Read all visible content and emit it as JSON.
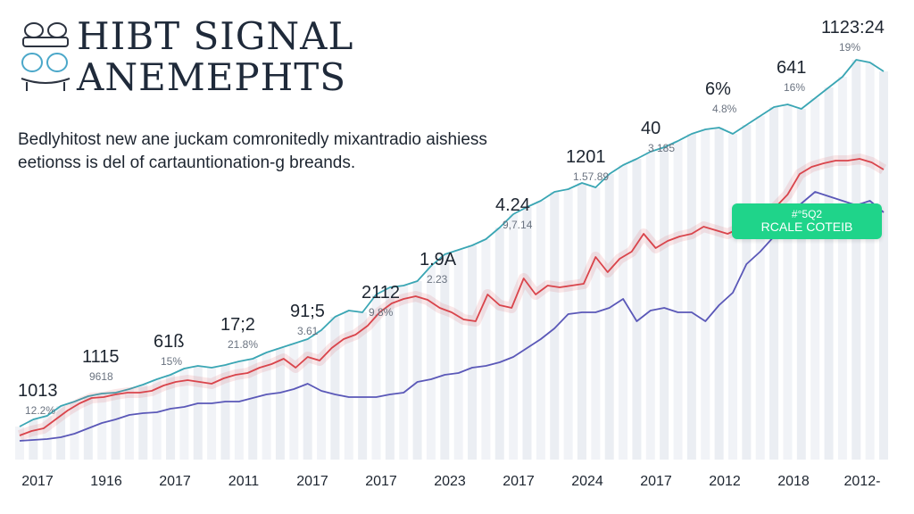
{
  "header": {
    "title_line1": "HIBT SIGNAL",
    "title_line2": "ANEMEPHTS",
    "desc_line1": "Bedlyhitost new ane juckam comronitedly mixantradio aishiess",
    "desc_line2": "eetionss is del of cartauntionation-g breands."
  },
  "badge": {
    "line1": "#°5Q2",
    "line2": "RCALE COTEIB"
  },
  "colors": {
    "teal": "#3aa6b4",
    "red": "#d9444b",
    "blue": "#5a58b8",
    "badge": "#1fd48a",
    "bars": "#e6eaf0"
  },
  "chart_data": {
    "type": "line",
    "title": "HIBT SIGNAL ANEMEPHTS",
    "x_tick_labels": [
      "2017",
      "1916",
      "2017",
      "2011",
      "2017",
      "2017",
      "2023",
      "2017",
      "2024",
      "2017",
      "2012",
      "2018",
      "2012-"
    ],
    "series": [
      {
        "values": [
          478,
          470,
          466,
          455,
          450,
          444,
          441,
          440,
          436,
          431,
          425,
          420,
          413,
          410,
          412,
          409,
          405,
          402,
          395,
          390,
          385,
          380,
          370,
          355,
          348,
          350,
          330,
          322,
          320,
          315,
          298,
          285,
          280,
          275,
          268,
          255,
          240,
          232,
          225,
          215,
          212,
          205,
          210,
          195,
          185,
          178,
          170,
          165,
          158,
          150,
          145,
          143,
          150,
          140,
          130,
          120,
          117,
          122,
          110,
          98,
          86,
          67,
          70,
          80
        ]
      },
      {
        "values": [
          488,
          483,
          480,
          470,
          460,
          452,
          446,
          445,
          442,
          440,
          440,
          438,
          432,
          428,
          426,
          428,
          430,
          424,
          420,
          418,
          412,
          408,
          402,
          412,
          400,
          404,
          390,
          380,
          375,
          365,
          350,
          340,
          335,
          332,
          336,
          345,
          350,
          358,
          360,
          330,
          342,
          345,
          312,
          330,
          320,
          322,
          320,
          318,
          288,
          305,
          290,
          282,
          262,
          278,
          270,
          265,
          262,
          254,
          258,
          262,
          256,
          252,
          246,
          232,
          218,
          195,
          187,
          183,
          180,
          180,
          178,
          182,
          190
        ]
      },
      {
        "values": [
          494,
          493,
          492,
          490,
          486,
          480,
          474,
          470,
          465,
          463,
          462,
          458,
          456,
          452,
          452,
          450,
          450,
          446,
          442,
          440,
          436,
          430,
          438,
          442,
          445,
          445,
          445,
          442,
          440,
          428,
          425,
          420,
          418,
          412,
          410,
          406,
          400,
          390,
          380,
          368,
          352,
          350,
          350,
          345,
          335,
          360,
          348,
          345,
          350,
          350,
          360,
          342,
          328,
          296,
          282,
          265,
          240,
          228,
          215,
          220,
          225,
          230,
          225,
          238
        ]
      }
    ],
    "annotations": [
      {
        "value": "1013",
        "sub": "12.2%"
      },
      {
        "value": "1115",
        "sub": "9618"
      },
      {
        "value": "61ß",
        "sub": "15%"
      },
      {
        "value": "17;2",
        "sub": "21.8%"
      },
      {
        "value": "91;5",
        "sub": "3.61"
      },
      {
        "value": "2112",
        "sub": "9.8%"
      },
      {
        "value": "1.9А",
        "sub": "2.23"
      },
      {
        "value": "4.24",
        "sub": "9,7.14"
      },
      {
        "value": "1201",
        "sub": "1.57.89"
      },
      {
        "value": "40",
        "sub": "3 185"
      },
      {
        "value": "6%",
        "sub": "4.8%"
      },
      {
        "value": "641",
        "sub": "16%"
      },
      {
        "value": "1123:24",
        "sub": "19%"
      }
    ],
    "grid": false,
    "legend": "none"
  }
}
